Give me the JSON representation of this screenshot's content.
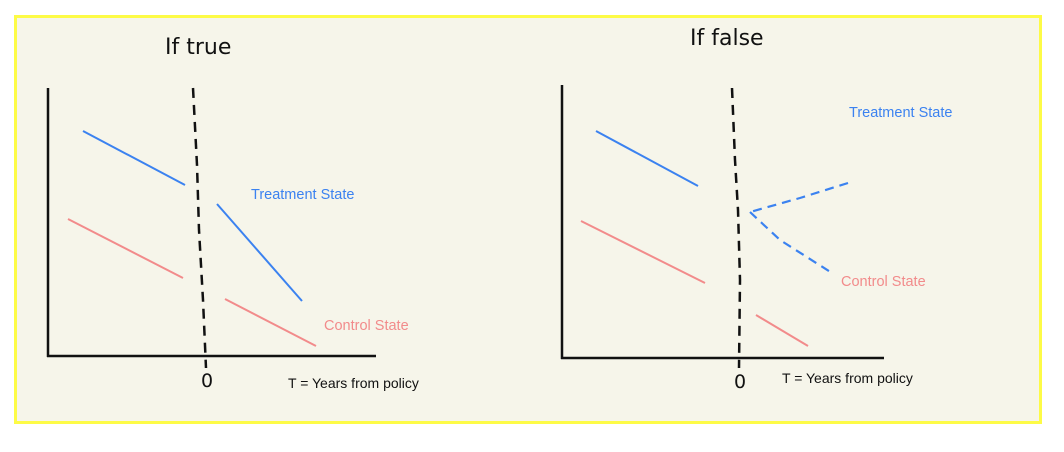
{
  "colors": {
    "frame_border": "#fdfb46",
    "background": "#f6f5ea",
    "treatment": "#3b82f0",
    "control": "#f28b8b",
    "axis": "#111111"
  },
  "panels": [
    {
      "title": "If true",
      "zero_label": "0",
      "xlabel": "T = Years from policy",
      "treatment_label": "Treatment State",
      "control_label": "Control State"
    },
    {
      "title": "If false",
      "zero_label": "0",
      "xlabel": "T = Years from policy",
      "treatment_label": "Treatment State",
      "control_label": "Control State"
    }
  ]
}
